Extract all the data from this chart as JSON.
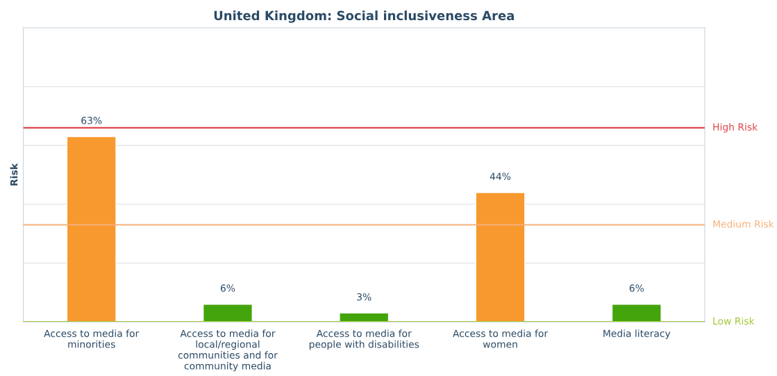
{
  "chart_data": {
    "type": "bar",
    "title": "United Kingdom: Social inclusiveness Area",
    "ylabel": "Risk",
    "categories": [
      "Access to media for\nminorities",
      "Access to media for\nlocal/regional\ncommunities and for\ncommunity media",
      "Access to media for\npeople with disabilities",
      "Access to media for\nwomen",
      "Media literacy"
    ],
    "values": [
      63,
      6,
      3,
      44,
      6
    ],
    "colors": [
      "#f7992f",
      "#44a40c",
      "#44a40c",
      "#f7992f",
      "#44a40c"
    ],
    "value_labels": [
      "63%",
      "6%",
      "3%",
      "44%",
      "6%"
    ],
    "ylim": [
      0,
      100
    ],
    "yticks": [
      {
        "value": 20,
        "label": null
      },
      {
        "value": 40,
        "label": null
      },
      {
        "value": 60,
        "label": null
      },
      {
        "value": 80,
        "label": null
      }
    ],
    "tick_labels": "x",
    "grid": "y",
    "legend": false,
    "ref_lines": [
      {
        "axis": "y",
        "value": 66,
        "label": "High Risk",
        "color": "#e0474c"
      },
      {
        "axis": "y",
        "value": 33,
        "label": "Medium Risk",
        "color": "#f5b07a"
      },
      {
        "axis": "y",
        "value": 0,
        "label": "Low Risk",
        "color": "#a5c93a"
      }
    ]
  }
}
